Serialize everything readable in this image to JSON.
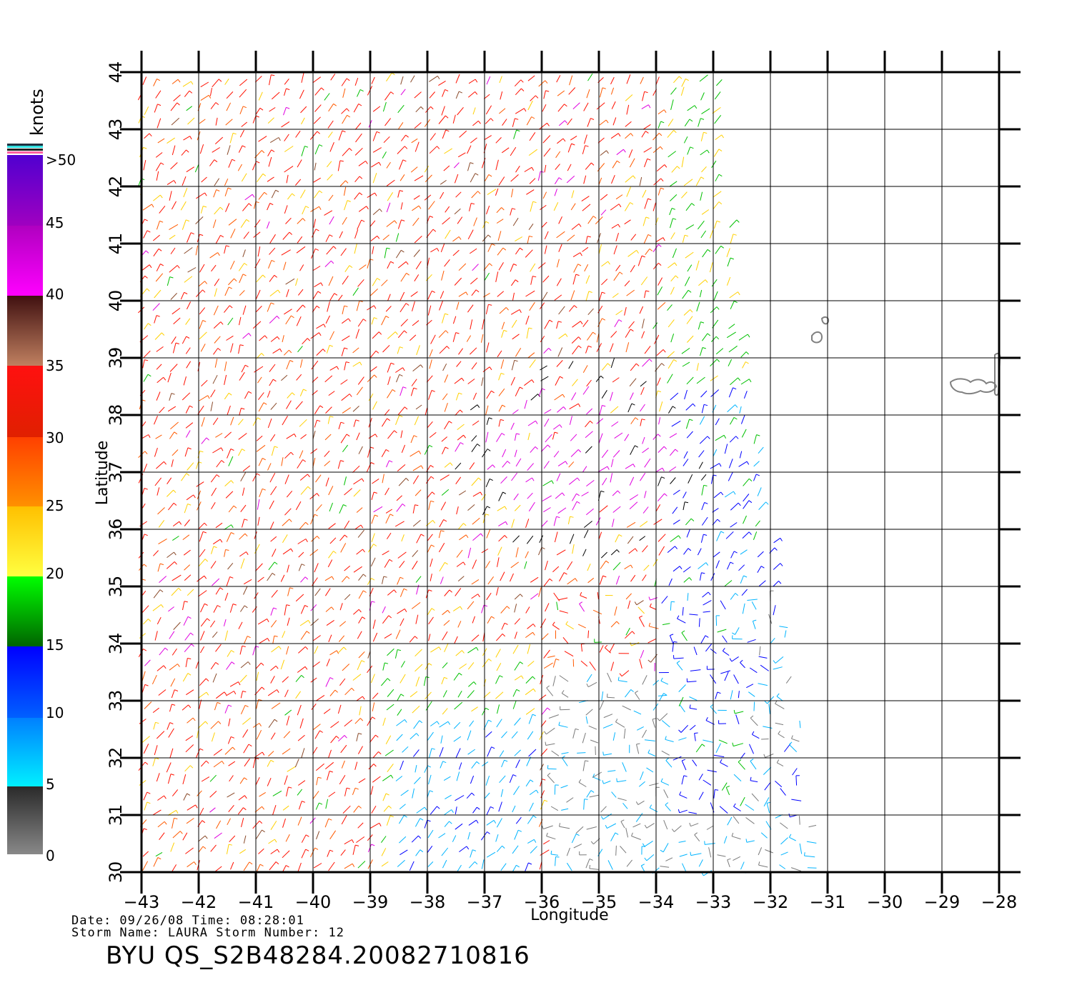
{
  "map": {
    "xlabel": "Longitude",
    "ylabel": "Latitude",
    "lon_range": [
      -43,
      -28
    ],
    "lat_range": [
      30,
      44
    ],
    "lon_ticks": [
      "−43",
      "−42",
      "−41",
      "−40",
      "−39",
      "−38",
      "−37",
      "−36",
      "−35",
      "−34",
      "−33",
      "−32",
      "−31",
      "−30",
      "−29",
      "−28"
    ],
    "lat_ticks": [
      "30",
      "31",
      "32",
      "33",
      "34",
      "35",
      "36",
      "37",
      "38",
      "39",
      "40",
      "41",
      "42",
      "43",
      "44"
    ],
    "grid": true
  },
  "legend": {
    "unit": "knots",
    "labels": [
      "0",
      "5",
      "10",
      "15",
      "20",
      "25",
      "30",
      "35",
      "40",
      "45",
      ">50"
    ],
    "colors": {
      "0-5": "#7a7a7a",
      "5-10": "#00b4ff",
      "10-15": "#0000ff",
      "15-20": "#00c000",
      "20-25": "#ffd000",
      "25-30": "#ff5a00",
      "30-35": "#ff1000",
      "35-40": "#8a4a2a",
      "40-45": "#e000e0",
      ">50": "#5a00d0"
    }
  },
  "footer": {
    "line1": "Date: 09/26/08   Time: 08:28:01",
    "line2": "Storm Name: LAURA   Storm Number: 12",
    "title": "BYU  QS_S2B48284.20082710816"
  },
  "chart_data": {
    "type": "wind-barb-map",
    "xlabel": "Longitude",
    "ylabel": "Latitude",
    "xlim": [
      -43,
      -28
    ],
    "ylim": [
      30,
      44
    ],
    "grid": true,
    "color_scale_unit": "knots",
    "swath_corners_lonlat": [
      [
        -43,
        44
      ],
      [
        -33,
        44
      ],
      [
        -30.5,
        30
      ],
      [
        -43,
        30
      ]
    ],
    "regions": [
      {
        "zone": "north-west swath",
        "speed_knots": "25-35",
        "color": "red-orange"
      },
      {
        "zone": "circulation center near -35,37",
        "speed_knots": ">40",
        "color": "purple"
      },
      {
        "zone": "east of center",
        "speed_knots": "10-20",
        "color": "blue-green"
      },
      {
        "zone": "south-east",
        "speed_knots": "0-10",
        "color": "gray-cyan"
      }
    ]
  }
}
